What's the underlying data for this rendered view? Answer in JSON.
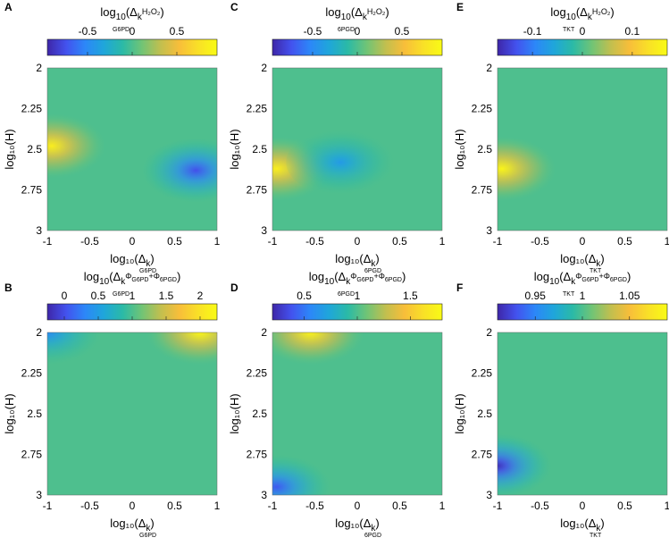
{
  "chart_data": [
    {
      "type": "heatmap",
      "panel": "A",
      "colorbar_label_main": "log",
      "colorbar_label_sub": "10",
      "colorbar_label_rest": "(Δ",
      "colorbar_label_k": "k",
      "colorbar_label_sup": "H₂O₂",
      "colorbar_label_subk": "G6PD",
      "colorbar_label_end": ")",
      "colorbar_ticks": [
        -0.5,
        0,
        0.5
      ],
      "colorbar_range": [
        -0.95,
        0.95
      ],
      "ylabel": "log₁₀(H)",
      "xlabel_main": "log₁₀(Δ",
      "xlabel_k": "k",
      "xlabel_sub": "G6PD",
      "xlabel_end": ")",
      "x_ticks": [
        -1,
        -0.5,
        0,
        0.5,
        1
      ],
      "y_ticks": [
        2,
        2.25,
        2.5,
        2.75,
        3
      ],
      "xlim": [
        -1,
        1
      ],
      "ylim": [
        2,
        3
      ],
      "y_reversed": true,
      "features": [
        {
          "kind": "peak",
          "x": -0.95,
          "y": 2.48,
          "value": 0.85
        },
        {
          "kind": "trough",
          "x": 0.75,
          "y": 2.63,
          "value": -0.75
        }
      ],
      "background_value": 0
    },
    {
      "type": "heatmap",
      "panel": "C",
      "colorbar_label_main": "log",
      "colorbar_label_sub": "10",
      "colorbar_label_rest": "(Δ",
      "colorbar_label_k": "k",
      "colorbar_label_sup": "H₂O₂",
      "colorbar_label_subk": "6PGD",
      "colorbar_label_end": ")",
      "colorbar_ticks": [
        -0.5,
        0,
        0.5
      ],
      "colorbar_range": [
        -0.95,
        0.95
      ],
      "ylabel": "log₁₀(H)",
      "xlabel_main": "log₁₀(Δ",
      "xlabel_k": "k",
      "xlabel_sub": "6PGD",
      "xlabel_end": ")",
      "x_ticks": [
        -1,
        -0.5,
        0,
        0.5,
        1
      ],
      "y_ticks": [
        2,
        2.25,
        2.5,
        2.75,
        3
      ],
      "xlim": [
        -1,
        1
      ],
      "ylim": [
        2,
        3
      ],
      "y_reversed": true,
      "features": [
        {
          "kind": "peak",
          "x": -0.95,
          "y": 2.62,
          "value": 0.85
        },
        {
          "kind": "trough",
          "x": -0.2,
          "y": 2.58,
          "value": -0.4
        }
      ],
      "background_value": 0
    },
    {
      "type": "heatmap",
      "panel": "E",
      "colorbar_label_main": "log",
      "colorbar_label_sub": "10",
      "colorbar_label_rest": "(Δ",
      "colorbar_label_k": "k",
      "colorbar_label_sup": "H₂O₂",
      "colorbar_label_subk": "TKT",
      "colorbar_label_end": ")",
      "colorbar_ticks": [
        -0.1,
        0,
        0.1
      ],
      "colorbar_range": [
        -0.17,
        0.17
      ],
      "ylabel": "log₁₀(H)",
      "xlabel_main": "log₁₀(Δ",
      "xlabel_k": "k",
      "xlabel_sub": "TKT",
      "xlabel_end": ")",
      "x_ticks": [
        -1,
        -0.5,
        0,
        0.5,
        1
      ],
      "y_ticks": [
        2,
        2.25,
        2.5,
        2.75,
        3
      ],
      "xlim": [
        -1,
        1
      ],
      "ylim": [
        2,
        3
      ],
      "y_reversed": true,
      "features": [
        {
          "kind": "peak",
          "x": -0.95,
          "y": 2.62,
          "value": 0.16
        }
      ],
      "background_value": 0
    },
    {
      "type": "heatmap",
      "panel": "B",
      "colorbar_label_main": "log",
      "colorbar_label_sub": "10",
      "colorbar_label_rest": "(Δ",
      "colorbar_label_k": "k",
      "colorbar_label_sup": "Φ",
      "colorbar_label_sup2": "G6PD",
      "colorbar_label_sup3": "+Φ",
      "colorbar_label_sup4": "6PGD",
      "colorbar_label_subk": "G6PD",
      "colorbar_label_end": ")",
      "colorbar_ticks": [
        0,
        0.5,
        1,
        1.5,
        2
      ],
      "colorbar_range": [
        -0.25,
        2.25
      ],
      "ylabel": "log₁₀(H)",
      "xlabel_main": "log₁₀(Δ",
      "xlabel_k": "k",
      "xlabel_sub": "G6PD",
      "xlabel_end": ")",
      "x_ticks": [
        -1,
        -0.5,
        0,
        0.5,
        1
      ],
      "y_ticks": [
        2,
        2.25,
        2.5,
        2.75,
        3
      ],
      "xlim": [
        -1,
        1
      ],
      "ylim": [
        2,
        3
      ],
      "y_reversed": true,
      "features": [
        {
          "kind": "peak",
          "x": 0.8,
          "y": 2.0,
          "value": 2.2
        },
        {
          "kind": "trough",
          "x": -1.0,
          "y": 2.0,
          "value": 0.35
        }
      ],
      "background_value": 1
    },
    {
      "type": "heatmap",
      "panel": "D",
      "colorbar_label_main": "log",
      "colorbar_label_sub": "10",
      "colorbar_label_rest": "(Δ",
      "colorbar_label_k": "k",
      "colorbar_label_sup": "Φ",
      "colorbar_label_sup2": "G6PD",
      "colorbar_label_sup3": "+Φ",
      "colorbar_label_sup4": "6PGD",
      "colorbar_label_subk": "6PGD",
      "colorbar_label_end": ")",
      "colorbar_ticks": [
        0.5,
        1,
        1.5
      ],
      "colorbar_range": [
        0.2,
        1.8
      ],
      "ylabel": "log₁₀(H)",
      "xlabel_main": "log₁₀(Δ",
      "xlabel_k": "k",
      "xlabel_sub": "6PGD",
      "xlabel_end": ")",
      "x_ticks": [
        -1,
        -0.5,
        0,
        0.5,
        1
      ],
      "y_ticks": [
        2,
        2.25,
        2.5,
        2.75,
        3
      ],
      "xlim": [
        -1,
        1
      ],
      "ylim": [
        2,
        3
      ],
      "y_reversed": true,
      "features": [
        {
          "kind": "peak",
          "x": -0.55,
          "y": 2.0,
          "value": 1.75
        },
        {
          "kind": "trough",
          "x": -0.95,
          "y": 2.95,
          "value": 0.4
        }
      ],
      "background_value": 1
    },
    {
      "type": "heatmap",
      "panel": "F",
      "colorbar_label_main": "log",
      "colorbar_label_sub": "10",
      "colorbar_label_rest": "(Δ",
      "colorbar_label_k": "k",
      "colorbar_label_sup": "Φ",
      "colorbar_label_sup2": "G6PD",
      "colorbar_label_sup3": "+Φ",
      "colorbar_label_sup4": "6PGD",
      "colorbar_label_subk": "TKT",
      "colorbar_label_end": ")",
      "colorbar_ticks": [
        0.95,
        1,
        1.05
      ],
      "colorbar_range": [
        0.91,
        1.09
      ],
      "ylabel": "log₁₀(H)",
      "xlabel_main": "log₁₀(Δ",
      "xlabel_k": "k",
      "xlabel_sub": "TKT",
      "xlabel_end": ")",
      "x_ticks": [
        -1,
        -0.5,
        0,
        0.5,
        1
      ],
      "y_ticks": [
        2,
        2.25,
        2.5,
        2.75,
        3
      ],
      "xlim": [
        -1,
        1
      ],
      "ylim": [
        2,
        3
      ],
      "y_reversed": true,
      "features": [
        {
          "kind": "trough",
          "x": -1.0,
          "y": 2.82,
          "value": 0.915
        }
      ],
      "background_value": 1
    }
  ],
  "colormap": [
    "#3e26a8",
    "#4352ee",
    "#2c87f8",
    "#1fa6da",
    "#2bbaa6",
    "#70c476",
    "#c1bf4f",
    "#f8be3a",
    "#f9e027",
    "#f9fb15"
  ],
  "plot_fill_color": "#49ada8"
}
